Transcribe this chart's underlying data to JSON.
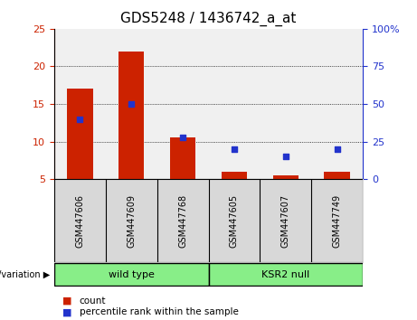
{
  "title": "GDS5248 / 1436742_a_at",
  "samples": [
    "GSM447606",
    "GSM447609",
    "GSM447768",
    "GSM447605",
    "GSM447607",
    "GSM447749"
  ],
  "counts": [
    17.0,
    22.0,
    10.5,
    6.0,
    5.5,
    6.0
  ],
  "percentiles": [
    40,
    50,
    28,
    20,
    15,
    20
  ],
  "bar_color": "#cc2200",
  "dot_color": "#2233cc",
  "ylim_left": [
    5,
    25
  ],
  "ylim_right": [
    0,
    100
  ],
  "yticks_left": [
    5,
    10,
    15,
    20,
    25
  ],
  "yticks_right": [
    0,
    25,
    50,
    75,
    100
  ],
  "groups": [
    {
      "label": "wild type",
      "indices": [
        0,
        1,
        2
      ]
    },
    {
      "label": "KSR2 null",
      "indices": [
        3,
        4,
        5
      ]
    }
  ],
  "group_label_prefix": "genotype/variation",
  "legend_count_label": "count",
  "legend_percentile_label": "percentile rank within the sample",
  "plot_bg": "#f0f0f0",
  "title_fontsize": 11,
  "tick_fontsize": 8,
  "bar_width": 0.5,
  "group_green": "#88ee88",
  "sample_bg": "#d8d8d8"
}
